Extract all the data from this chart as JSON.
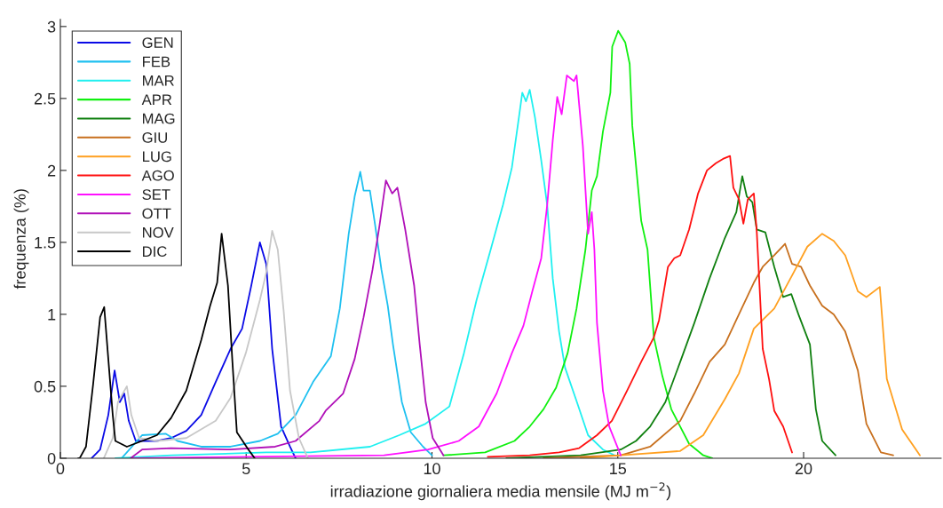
{
  "chart_data": {
    "type": "line",
    "xlabel": "irradiazione giornaliera media mensile (MJ m$^{−2}$)",
    "ylabel": "frequenza (%)",
    "xlim": [
      0,
      23.7
    ],
    "ylim": [
      0,
      3.05
    ],
    "xticks": [
      0,
      5,
      10,
      15,
      20
    ],
    "yticks": [
      0,
      0.5,
      1,
      1.5,
      2,
      2.5,
      3
    ],
    "grid": false,
    "legend": "top left",
    "marker": "none",
    "line_style": "solid",
    "series": [
      {
        "name": "GEN",
        "color": "#0a0ae6",
        "x": [
          0.84,
          1.07,
          1.29,
          1.46,
          1.6,
          1.72,
          1.84,
          2.03,
          2.6,
          2.98,
          3.39,
          3.79,
          4.18,
          4.58,
          4.89,
          5.13,
          5.37,
          5.54,
          5.7,
          5.94,
          6.18,
          6.33
        ],
        "values": [
          0,
          0.06,
          0.3,
          0.61,
          0.39,
          0.45,
          0.26,
          0.12,
          0.12,
          0.14,
          0.19,
          0.3,
          0.53,
          0.76,
          0.9,
          1.19,
          1.5,
          1.35,
          0.76,
          0.22,
          0.08,
          0
        ]
      },
      {
        "name": "FEB",
        "color": "#1ec0f0",
        "x": [
          1.65,
          2.2,
          2.84,
          3.15,
          3.79,
          4.58,
          5.37,
          5.85,
          6.33,
          6.8,
          7.28,
          7.52,
          7.76,
          7.92,
          8.07,
          8.16,
          8.33,
          8.47,
          8.64,
          8.81,
          8.95,
          9.19,
          9.43,
          9.76,
          10.0
        ],
        "values": [
          0,
          0.16,
          0.17,
          0.12,
          0.08,
          0.08,
          0.12,
          0.17,
          0.3,
          0.53,
          0.71,
          1.04,
          1.56,
          1.82,
          1.99,
          1.86,
          1.86,
          1.62,
          1.31,
          1.06,
          0.79,
          0.39,
          0.18,
          0.08,
          0.02
        ]
      },
      {
        "name": "MAR",
        "color": "#20f0f0",
        "x": [
          1.48,
          3.0,
          5.54,
          6.73,
          8.33,
          9.12,
          9.83,
          10.47,
          10.86,
          11.2,
          11.58,
          11.91,
          12.15,
          12.34,
          12.43,
          12.53,
          12.63,
          12.77,
          12.94,
          13.1,
          13.25,
          13.42,
          13.58,
          13.9,
          14.2,
          14.6,
          14.92
        ],
        "values": [
          0,
          0.02,
          0.04,
          0.04,
          0.08,
          0.16,
          0.24,
          0.36,
          0.73,
          1.1,
          1.45,
          1.76,
          2.02,
          2.37,
          2.54,
          2.48,
          2.56,
          2.37,
          2.07,
          1.76,
          1.25,
          0.88,
          0.63,
          0.39,
          0.16,
          0.06,
          0.02
        ]
      },
      {
        "name": "APR",
        "color": "#10f010",
        "x": [
          10.31,
          11.43,
          12.22,
          12.63,
          13.0,
          13.34,
          13.65,
          13.89,
          14.13,
          14.3,
          14.44,
          14.6,
          14.8,
          14.85,
          15.01,
          15.2,
          15.32,
          15.39,
          15.63,
          15.8,
          15.97,
          16.2,
          16.44,
          16.68,
          16.92,
          17.3,
          17.54
        ],
        "values": [
          0.02,
          0.04,
          0.12,
          0.22,
          0.34,
          0.49,
          0.73,
          1.04,
          1.45,
          1.86,
          1.96,
          2.27,
          2.54,
          2.86,
          2.97,
          2.89,
          2.74,
          2.31,
          1.65,
          1.45,
          0.84,
          0.57,
          0.34,
          0.22,
          0.1,
          0.02,
          0
        ]
      },
      {
        "name": "MAG",
        "color": "#108010",
        "x": [
          12.0,
          14.0,
          15.08,
          15.49,
          15.87,
          16.28,
          16.68,
          17.06,
          17.47,
          17.88,
          18.19,
          18.35,
          18.47,
          18.62,
          18.74,
          18.97,
          19.21,
          19.45,
          19.67,
          19.86,
          20.17,
          20.33,
          20.5,
          20.86
        ],
        "values": [
          0,
          0.02,
          0.06,
          0.12,
          0.22,
          0.39,
          0.67,
          0.94,
          1.25,
          1.53,
          1.71,
          1.96,
          1.82,
          1.78,
          1.59,
          1.57,
          1.33,
          1.12,
          1.14,
          1.0,
          0.79,
          0.34,
          0.12,
          0.02
        ]
      },
      {
        "name": "GIU",
        "color": "#c8701e",
        "x": [
          13.0,
          15.08,
          15.87,
          16.68,
          17.06,
          17.47,
          17.88,
          18.26,
          18.66,
          18.9,
          19.21,
          19.5,
          19.69,
          19.93,
          20.17,
          20.5,
          20.81,
          21.12,
          21.46,
          21.69,
          22.08,
          22.41
        ],
        "values": [
          0,
          0.02,
          0.08,
          0.26,
          0.45,
          0.67,
          0.79,
          1.0,
          1.22,
          1.33,
          1.41,
          1.49,
          1.35,
          1.33,
          1.2,
          1.06,
          1.0,
          0.88,
          0.61,
          0.24,
          0.04,
          0.02
        ]
      },
      {
        "name": "LUG",
        "color": "#ffa020",
        "x": [
          14.0,
          15.08,
          16.68,
          17.3,
          17.88,
          18.26,
          18.66,
          19.21,
          19.69,
          20.1,
          20.5,
          20.81,
          21.12,
          21.46,
          21.69,
          22.05,
          22.24,
          22.65,
          23.13
        ],
        "values": [
          0,
          0.02,
          0.05,
          0.16,
          0.41,
          0.59,
          0.9,
          1.04,
          1.27,
          1.47,
          1.56,
          1.51,
          1.41,
          1.16,
          1.12,
          1.19,
          0.55,
          0.2,
          0.02
        ]
      },
      {
        "name": "AGO",
        "color": "#ff1010",
        "x": [
          11.5,
          12.63,
          13.42,
          13.96,
          14.44,
          14.84,
          15.25,
          15.63,
          15.97,
          16.11,
          16.35,
          16.52,
          16.68,
          16.92,
          17.16,
          17.4,
          17.64,
          17.83,
          18.02,
          18.11,
          18.26,
          18.38,
          18.5,
          18.66,
          18.74,
          18.9,
          19.07,
          19.21,
          19.45,
          19.69
        ],
        "values": [
          0.01,
          0.02,
          0.04,
          0.07,
          0.16,
          0.26,
          0.47,
          0.67,
          0.84,
          0.96,
          1.33,
          1.39,
          1.41,
          1.59,
          1.84,
          2.0,
          2.05,
          2.08,
          2.1,
          1.88,
          1.8,
          1.63,
          1.8,
          1.84,
          1.57,
          0.76,
          0.55,
          0.33,
          0.22,
          0.04
        ]
      },
      {
        "name": "SET",
        "color": "#ff10ff",
        "x": [
          1.9,
          5.0,
          8.71,
          9.9,
          10.72,
          11.26,
          11.74,
          12.15,
          12.46,
          12.7,
          12.94,
          13.1,
          13.25,
          13.37,
          13.49,
          13.63,
          13.82,
          13.89,
          14.06,
          14.2,
          14.3,
          14.37,
          14.44,
          14.6,
          14.77,
          15.08
        ],
        "values": [
          0,
          0.01,
          0.02,
          0.06,
          0.12,
          0.22,
          0.45,
          0.73,
          0.92,
          1.16,
          1.39,
          1.76,
          2.21,
          2.51,
          2.39,
          2.66,
          2.62,
          2.66,
          2.17,
          1.56,
          1.71,
          1.45,
          0.94,
          0.47,
          0.22,
          0.02
        ]
      },
      {
        "name": "OTT",
        "color": "#b010b8",
        "x": [
          1.89,
          2.2,
          2.98,
          4.58,
          5.78,
          6.33,
          6.97,
          7.14,
          7.61,
          7.92,
          8.16,
          8.4,
          8.59,
          8.76,
          8.93,
          9.07,
          9.28,
          9.52,
          9.67,
          9.83,
          10.02,
          10.31
        ],
        "values": [
          0,
          0.06,
          0.07,
          0.06,
          0.08,
          0.12,
          0.26,
          0.33,
          0.45,
          0.69,
          0.98,
          1.31,
          1.62,
          1.93,
          1.84,
          1.88,
          1.59,
          1.2,
          0.79,
          0.39,
          0.14,
          0.02
        ]
      },
      {
        "name": "NOV",
        "color": "#c8c8c8",
        "x": [
          1.17,
          1.41,
          1.55,
          1.79,
          1.91,
          2.12,
          2.6,
          3.39,
          4.18,
          4.58,
          4.99,
          5.37,
          5.54,
          5.7,
          5.85,
          6.01,
          6.18,
          6.42,
          6.66
        ],
        "values": [
          0,
          0.14,
          0.39,
          0.5,
          0.3,
          0.14,
          0.12,
          0.14,
          0.26,
          0.42,
          0.73,
          1.1,
          1.29,
          1.58,
          1.45,
          1.02,
          0.47,
          0.14,
          0
        ]
      },
      {
        "name": "DIC",
        "color": "#000000",
        "x": [
          0.48,
          0.52,
          0.69,
          0.88,
          1.07,
          1.18,
          1.41,
          1.48,
          1.79,
          2.2,
          2.6,
          2.98,
          3.39,
          3.79,
          4.03,
          4.22,
          4.34,
          4.51,
          4.63,
          4.75,
          5.06,
          5.23
        ],
        "values": [
          0,
          0,
          0.08,
          0.51,
          0.98,
          1.05,
          0.3,
          0.12,
          0.08,
          0.12,
          0.16,
          0.28,
          0.47,
          0.82,
          1.06,
          1.22,
          1.56,
          1.2,
          0.67,
          0.18,
          0.06,
          0
        ]
      }
    ]
  }
}
